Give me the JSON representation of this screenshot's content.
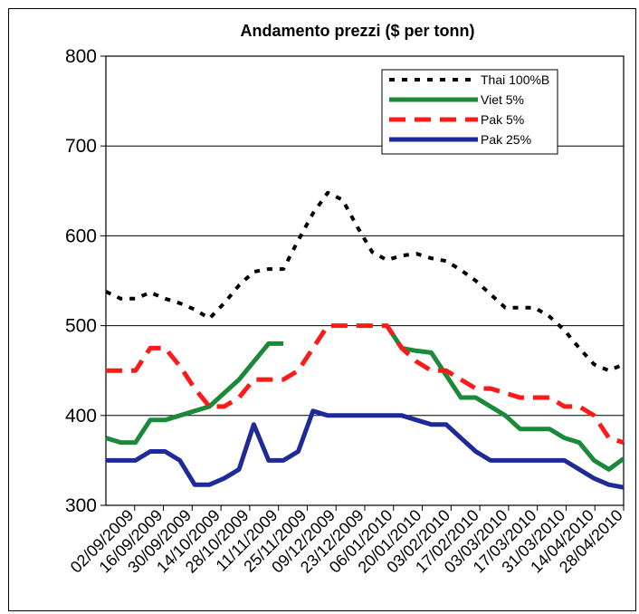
{
  "chart_data": {
    "type": "line",
    "title": "Andamento prezzi ($ per tonn)",
    "xlabel": "",
    "ylabel": "",
    "ylim": [
      300,
      800
    ],
    "yticks": [
      "300",
      "400",
      "500",
      "600",
      "700",
      "800"
    ],
    "grid": true,
    "legend_position": "top-right",
    "categories": [
      "02/09/2009",
      "16/09/2009",
      "30/09/2009",
      "14/10/2009",
      "28/10/2009",
      "11/11/2009",
      "25/11/2009",
      "09/12/2009",
      "23/12/2009",
      "06/01/2010",
      "20/01/2010",
      "03/02/2010",
      "17/02/2010",
      "03/03/2010",
      "17/03/2010",
      "31/03/2010",
      "14/04/2010",
      "28/04/2010"
    ],
    "x": [
      0,
      1,
      2,
      3,
      4,
      5,
      6,
      7,
      8,
      9,
      10,
      11,
      12,
      13,
      14,
      15,
      16,
      17,
      18,
      19,
      20,
      21,
      22,
      23,
      24,
      25,
      26,
      27,
      28,
      29,
      30,
      31,
      32,
      33,
      34,
      35
    ],
    "series": [
      {
        "name": "Thai 100%B",
        "color": "#000000",
        "style": "dotted",
        "values": [
          538,
          530,
          530,
          537,
          530,
          525,
          518,
          508,
          525,
          545,
          560,
          563,
          563,
          595,
          625,
          648,
          640,
          610,
          582,
          573,
          578,
          580,
          575,
          572,
          562,
          550,
          535,
          520,
          520,
          520,
          510,
          495,
          475,
          457,
          450,
          457
        ]
      },
      {
        "name": "Viet 5%",
        "color": "#1a8a3a",
        "style": "solid",
        "values": [
          375,
          370,
          370,
          395,
          395,
          400,
          405,
          410,
          425,
          440,
          460,
          480,
          480,
          null,
          null,
          null,
          null,
          null,
          null,
          500,
          475,
          472,
          470,
          445,
          420,
          420,
          410,
          400,
          385,
          385,
          385,
          375,
          370,
          350,
          340,
          352
        ]
      },
      {
        "name": "Pak 5%",
        "color": "#ff1a1a",
        "style": "dashed",
        "values": [
          450,
          450,
          450,
          475,
          475,
          455,
          430,
          410,
          410,
          420,
          440,
          440,
          440,
          450,
          475,
          500,
          500,
          500,
          500,
          500,
          475,
          460,
          450,
          450,
          440,
          430,
          430,
          425,
          420,
          420,
          420,
          410,
          410,
          400,
          375,
          370
        ]
      },
      {
        "name": "Pak 25%",
        "color": "#1f2a99",
        "style": "solid",
        "values": [
          350,
          350,
          350,
          360,
          360,
          350,
          323,
          323,
          330,
          340,
          390,
          350,
          350,
          360,
          405,
          400,
          400,
          400,
          400,
          400,
          400,
          395,
          390,
          390,
          375,
          360,
          350,
          350,
          350,
          350,
          350,
          350,
          340,
          330,
          323,
          320
        ]
      }
    ]
  }
}
